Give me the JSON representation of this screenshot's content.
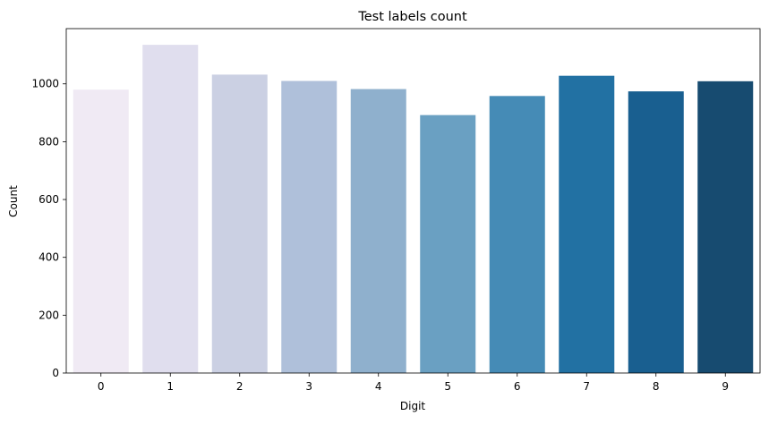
{
  "chart_data": {
    "type": "bar",
    "title": "Test labels count",
    "xlabel": "Digit",
    "ylabel": "Count",
    "categories": [
      "0",
      "1",
      "2",
      "3",
      "4",
      "5",
      "6",
      "7",
      "8",
      "9"
    ],
    "values": [
      980,
      1135,
      1032,
      1010,
      982,
      892,
      958,
      1028,
      974,
      1009
    ],
    "ylim": [
      0,
      1191
    ],
    "yticks": [
      0,
      200,
      400,
      600,
      800,
      1000
    ],
    "grid": false,
    "legend": "none",
    "colors": [
      "#f0eaf4",
      "#e0deee",
      "#cbd0e3",
      "#afc0da",
      "#8fb0cd",
      "#6aa0c2",
      "#458bb6",
      "#2271a3",
      "#195f90",
      "#174b70"
    ]
  }
}
